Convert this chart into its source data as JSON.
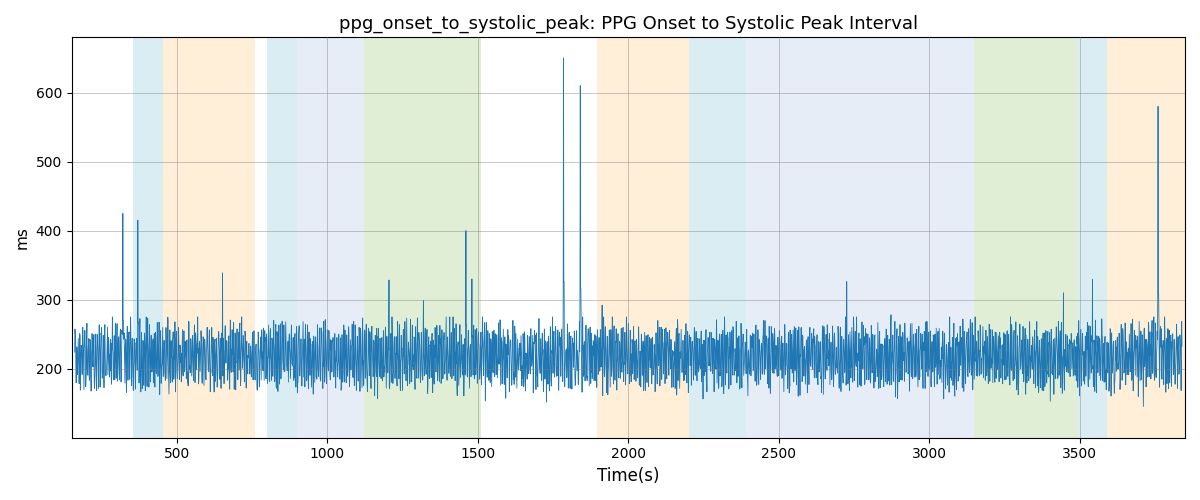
{
  "title": "ppg_onset_to_systolic_peak: PPG Onset to Systolic Peak Interval",
  "xlabel": "Time(s)",
  "ylabel": "ms",
  "xlim": [
    150,
    3850
  ],
  "ylim": [
    100,
    680
  ],
  "yticks": [
    200,
    300,
    400,
    500,
    600
  ],
  "xticks": [
    500,
    1000,
    1500,
    2000,
    2500,
    3000,
    3500
  ],
  "line_color": "#1f77b4",
  "background_color": "#ffffff",
  "bands": [
    {
      "xmin": 355,
      "xmax": 455,
      "color": "#add8e6",
      "alpha": 0.45
    },
    {
      "xmin": 455,
      "xmax": 760,
      "color": "#ffdcaa",
      "alpha": 0.45
    },
    {
      "xmin": 800,
      "xmax": 900,
      "color": "#add8e6",
      "alpha": 0.45
    },
    {
      "xmin": 900,
      "xmax": 1120,
      "color": "#c8d8ee",
      "alpha": 0.45
    },
    {
      "xmin": 1120,
      "xmax": 1510,
      "color": "#b8dba0",
      "alpha": 0.45
    },
    {
      "xmin": 1895,
      "xmax": 2200,
      "color": "#ffdcaa",
      "alpha": 0.45
    },
    {
      "xmin": 2200,
      "xmax": 2390,
      "color": "#add8e6",
      "alpha": 0.45
    },
    {
      "xmin": 2390,
      "xmax": 2730,
      "color": "#c8d8ee",
      "alpha": 0.45
    },
    {
      "xmin": 2730,
      "xmax": 3150,
      "color": "#c8d8ee",
      "alpha": 0.45
    },
    {
      "xmin": 3150,
      "xmax": 3490,
      "color": "#b8dba0",
      "alpha": 0.45
    },
    {
      "xmin": 3490,
      "xmax": 3590,
      "color": "#add8e6",
      "alpha": 0.45
    },
    {
      "xmin": 3590,
      "xmax": 3850,
      "color": "#ffdcaa",
      "alpha": 0.45
    }
  ],
  "seed": 42,
  "n_points": 3700,
  "t_start": 160,
  "t_end": 3840,
  "base_value": 218,
  "noise_std": 35,
  "figsize": [
    12,
    5
  ],
  "dpi": 100,
  "title_fontsize": 13
}
